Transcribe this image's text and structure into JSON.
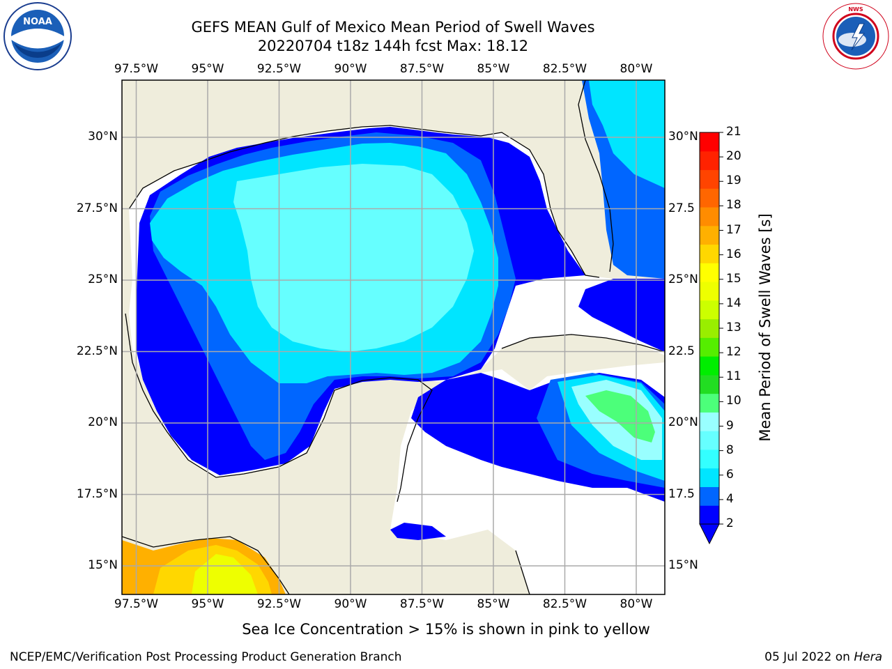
{
  "title": {
    "line1": "GEFS MEAN Gulf of Mexico Mean Period of Swell Waves",
    "line2": "20220704 t18z 144h fcst   Max: 18.12"
  },
  "logos": {
    "left": {
      "text": "NOAA",
      "icon": "noaa-logo"
    },
    "right": {
      "text": "NATIONAL WEATHER SERVICE",
      "icon": "nws-logo"
    }
  },
  "map": {
    "lon_ticks": [
      "97.5°W",
      "95°W",
      "92.5°W",
      "90°W",
      "87.5°W",
      "85°W",
      "82.5°W",
      "80°W"
    ],
    "lat_ticks_left": [
      "30°N",
      "27.5°N",
      "25°N",
      "22.5°N",
      "20°N",
      "17.5°N",
      "15°N"
    ],
    "lat_ticks_right": [
      "30°N",
      "27.5",
      "25°N",
      "22.5",
      "20°N",
      "17.5",
      "15°N"
    ],
    "lon_range": [
      -98,
      -79
    ],
    "lat_range": [
      14,
      32
    ]
  },
  "colorbar": {
    "label": "Mean Period of Swell Waves [s]",
    "ticks": [
      "21",
      "20",
      "19",
      "18",
      "17",
      "16",
      "15",
      "14",
      "13",
      "12",
      "11",
      "10",
      "9",
      "8",
      "6",
      "4",
      "2"
    ],
    "colors": [
      "#0000ff",
      "#0066ff",
      "#00e5ff",
      "#33ffff",
      "#66ffff",
      "#99ffff",
      "#4cff7a",
      "#22dd22",
      "#00ee00",
      "#55ee00",
      "#99ee00",
      "#ccff00",
      "#eeff00",
      "#ffff00",
      "#ffd700",
      "#ffb000",
      "#ff8c00",
      "#ff6600",
      "#ff4400",
      "#ff2200",
      "#ff0000"
    ]
  },
  "caption": "Sea Ice Concentration > 15% is shown in pink to yellow",
  "footer": {
    "left": "NCEP/EMC/Verification Post Processing Product Generation Branch",
    "right_date": "05 Jul 2022 on",
    "right_host": "Hera"
  }
}
